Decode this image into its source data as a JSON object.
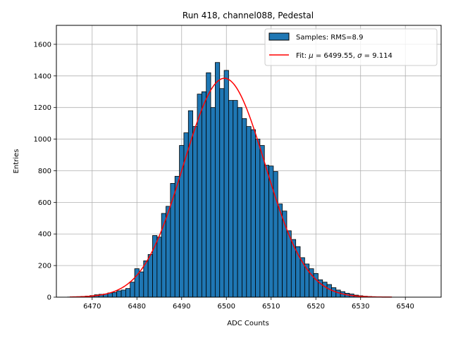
{
  "chart_data": {
    "type": "bar",
    "title": "Run 418, channel088, Pedestal",
    "xlabel": "ADC Counts",
    "ylabel": "Entries",
    "xlim": [
      6462,
      6548
    ],
    "ylim": [
      0,
      1720
    ],
    "xticks": [
      6470,
      6480,
      6490,
      6500,
      6510,
      6520,
      6530,
      6540
    ],
    "yticks": [
      0,
      200,
      400,
      600,
      800,
      1000,
      1200,
      1400,
      1600
    ],
    "grid": true,
    "legend_position": "top-right",
    "bar_width": 1,
    "colors": {
      "bars": "#1f77b4",
      "bar_edge": "#000000",
      "fit": "#ff0000",
      "grid": "#b0b0b0"
    },
    "series": [
      {
        "name": "Samples: RMS=8.9",
        "kind": "histogram",
        "x": [
          6465,
          6466,
          6467,
          6468,
          6469,
          6470,
          6471,
          6472,
          6473,
          6474,
          6475,
          6476,
          6477,
          6478,
          6479,
          6480,
          6481,
          6482,
          6483,
          6484,
          6485,
          6486,
          6487,
          6488,
          6489,
          6490,
          6491,
          6492,
          6493,
          6494,
          6495,
          6496,
          6497,
          6498,
          6499,
          6500,
          6501,
          6502,
          6503,
          6504,
          6505,
          6506,
          6507,
          6508,
          6509,
          6510,
          6511,
          6512,
          6513,
          6514,
          6515,
          6516,
          6517,
          6518,
          6519,
          6520,
          6521,
          6522,
          6523,
          6524,
          6525,
          6526,
          6527,
          6528,
          6529,
          6530,
          6531,
          6532,
          6533,
          6534,
          6535,
          6536,
          6537
        ],
        "values": [
          1,
          2,
          3,
          5,
          7,
          10,
          15,
          18,
          20,
          27,
          30,
          40,
          45,
          55,
          95,
          180,
          160,
          230,
          270,
          390,
          380,
          530,
          575,
          720,
          765,
          960,
          1040,
          1180,
          1080,
          1285,
          1300,
          1420,
          1200,
          1485,
          1320,
          1435,
          1245,
          1245,
          1200,
          1130,
          1080,
          1060,
          1000,
          960,
          835,
          830,
          795,
          590,
          545,
          420,
          365,
          320,
          250,
          210,
          180,
          150,
          110,
          95,
          80,
          60,
          45,
          35,
          25,
          20,
          13,
          9,
          6,
          4,
          3,
          2,
          1,
          1,
          0
        ]
      },
      {
        "name": "Fit: μ = 6499.55, σ = 9.114",
        "kind": "gaussian-fit",
        "mu": 6499.55,
        "sigma": 9.114,
        "amplitude": 1385,
        "x_range": [
          6465,
          6537
        ]
      }
    ]
  },
  "legend": {
    "samples_label": "Samples: RMS=8.9",
    "fit_label_prefix": "Fit: ",
    "fit_mu_symbol": "μ",
    "fit_mu_value": " = 6499.55, ",
    "fit_sigma_symbol": "σ",
    "fit_sigma_value": " = 9.114"
  }
}
